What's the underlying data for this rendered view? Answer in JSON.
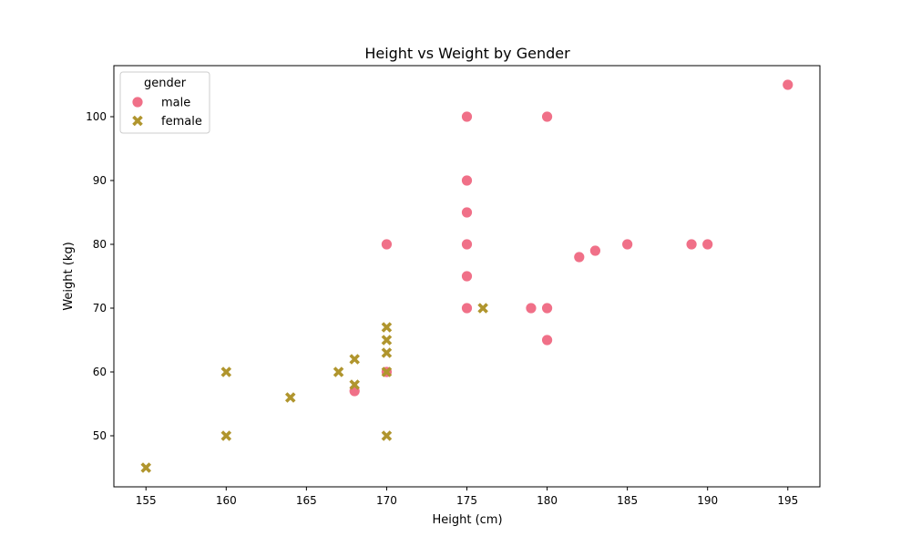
{
  "chart_data": {
    "type": "scatter",
    "title": "Height vs Weight by Gender",
    "xlabel": "Height (cm)",
    "ylabel": "Weight (kg)",
    "xlim": [
      153,
      197
    ],
    "ylim": [
      42,
      108
    ],
    "xticks": [
      155,
      160,
      165,
      170,
      175,
      180,
      185,
      190,
      195
    ],
    "yticks": [
      50,
      60,
      70,
      80,
      90,
      100
    ],
    "grid": false,
    "legend": {
      "title": "gender",
      "position": "top-left"
    },
    "series": [
      {
        "name": "male",
        "marker": "circle",
        "color": "#f07088",
        "points": [
          [
            195,
            105
          ],
          [
            175,
            100
          ],
          [
            180,
            100
          ],
          [
            175,
            90
          ],
          [
            175,
            85
          ],
          [
            170,
            80
          ],
          [
            175,
            80
          ],
          [
            185,
            80
          ],
          [
            189,
            80
          ],
          [
            190,
            80
          ],
          [
            183,
            79
          ],
          [
            182,
            78
          ],
          [
            175,
            75
          ],
          [
            175,
            70
          ],
          [
            179,
            70
          ],
          [
            180,
            70
          ],
          [
            180,
            65
          ],
          [
            170,
            60
          ],
          [
            168,
            57
          ]
        ]
      },
      {
        "name": "female",
        "marker": "x",
        "color": "#b0952d",
        "points": [
          [
            176,
            70
          ],
          [
            170,
            67
          ],
          [
            170,
            65
          ],
          [
            170,
            63
          ],
          [
            168,
            62
          ],
          [
            160,
            60
          ],
          [
            167,
            60
          ],
          [
            170,
            60
          ],
          [
            168,
            58
          ],
          [
            164,
            56
          ],
          [
            160,
            50
          ],
          [
            170,
            50
          ],
          [
            155,
            45
          ]
        ]
      }
    ]
  }
}
